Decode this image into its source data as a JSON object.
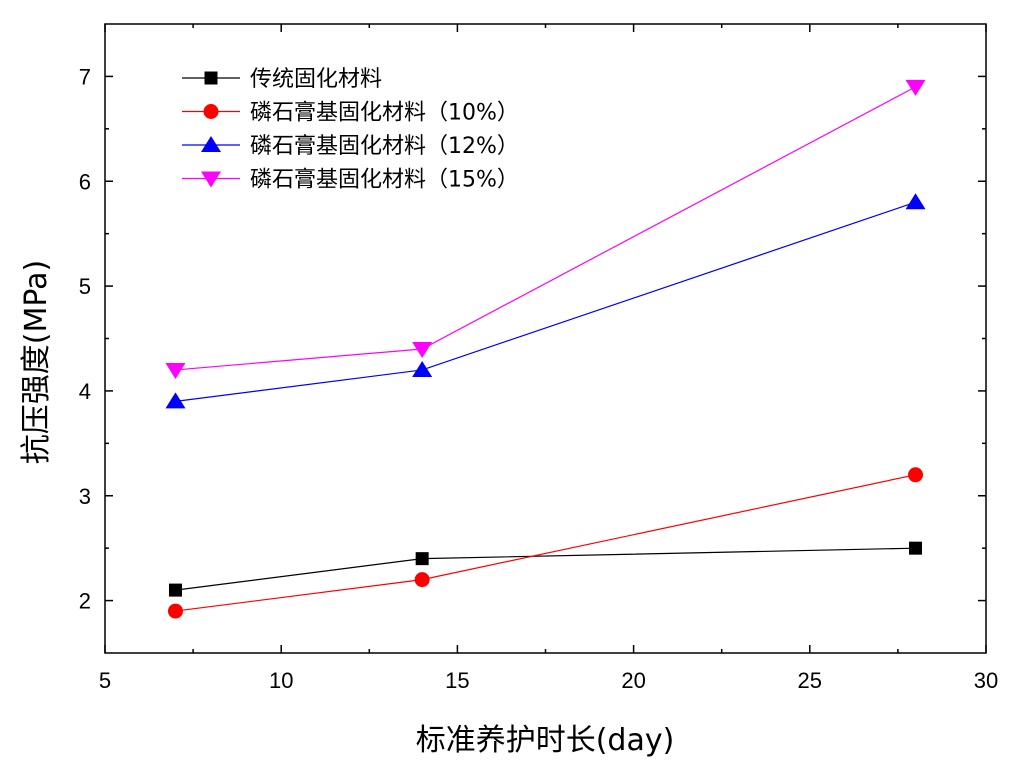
{
  "chart_data": {
    "type": "line",
    "title": "",
    "xlabel": "标准养护时长(day)",
    "ylabel": "抗压强度(MPa)",
    "xlim": [
      5,
      30
    ],
    "ylim": [
      1.5,
      7.5
    ],
    "x_ticks": [
      5,
      10,
      15,
      20,
      25,
      30
    ],
    "y_ticks": [
      2,
      3,
      4,
      5,
      6,
      7
    ],
    "x_tick_labels": [
      "5",
      "10",
      "15",
      "20",
      "25",
      "30"
    ],
    "y_tick_labels": [
      "2",
      "3",
      "4",
      "5",
      "6",
      "7"
    ],
    "grid": false,
    "legend_position": "top-left",
    "x": [
      7,
      14,
      28
    ],
    "series": [
      {
        "name": "传统固化材料",
        "values": [
          2.1,
          2.4,
          2.5
        ],
        "color": "#000000",
        "marker": "square"
      },
      {
        "name": "磷石膏基固化材料（10%）",
        "values": [
          1.9,
          2.2,
          3.2
        ],
        "color": "#ff0000",
        "marker": "circle"
      },
      {
        "name": "磷石膏基固化材料（12%）",
        "values": [
          3.9,
          4.2,
          5.8
        ],
        "color": "#0000ff",
        "marker": "triangle-up"
      },
      {
        "name": "磷石膏基固化材料（15%）",
        "values": [
          4.2,
          4.4,
          6.9
        ],
        "color": "#ff00ff",
        "marker": "triangle-down"
      }
    ]
  }
}
